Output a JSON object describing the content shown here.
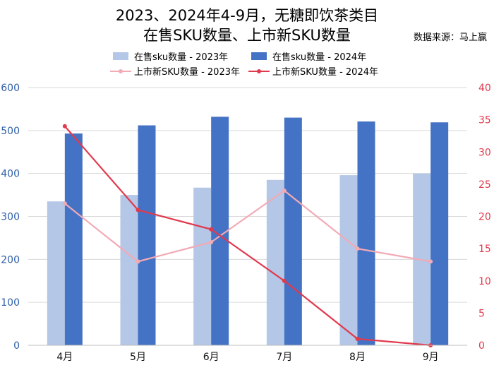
{
  "title_line1": "2023、2024年4-9月，无糖即饮茶类目",
  "title_line2": "在售SKU数量、上市新SKU数量",
  "source": "数据来源：马上赢",
  "colors": {
    "bar_2023": "#b4c7e7",
    "bar_2024": "#4472c4",
    "line_2023": "#f2aab5",
    "line_2024": "#e03a4e",
    "grid": "#d9d9d9",
    "left_axis_text": "#2f5fa8",
    "right_axis_text": "#e03a4e"
  },
  "chart_data": {
    "type": "bar",
    "categories": [
      "4月",
      "5月",
      "6月",
      "7月",
      "8月",
      "9月"
    ],
    "series": [
      {
        "name": "在售sku数量 - 2023年",
        "type": "bar",
        "axis": "left",
        "color": "#b4c7e7",
        "values": [
          335,
          350,
          367,
          385,
          396,
          400
        ]
      },
      {
        "name": "在售sku数量 - 2024年",
        "type": "bar",
        "axis": "left",
        "color": "#4472c4",
        "values": [
          493,
          512,
          532,
          530,
          521,
          519
        ]
      },
      {
        "name": "上市新SKU数量 - 2023年",
        "type": "line",
        "axis": "right",
        "color": "#f2aab5",
        "values": [
          22,
          13,
          16,
          24,
          15,
          13
        ]
      },
      {
        "name": "上市新SKU数量 - 2024年",
        "type": "line",
        "axis": "right",
        "color": "#e03a4e",
        "values": [
          34,
          21,
          18,
          10,
          1,
          0
        ]
      }
    ],
    "left_axis": {
      "min": 0,
      "max": 600,
      "step": 100
    },
    "right_axis": {
      "min": 0,
      "max": 40,
      "step": 5
    },
    "grid": true,
    "legend_position": "top"
  }
}
